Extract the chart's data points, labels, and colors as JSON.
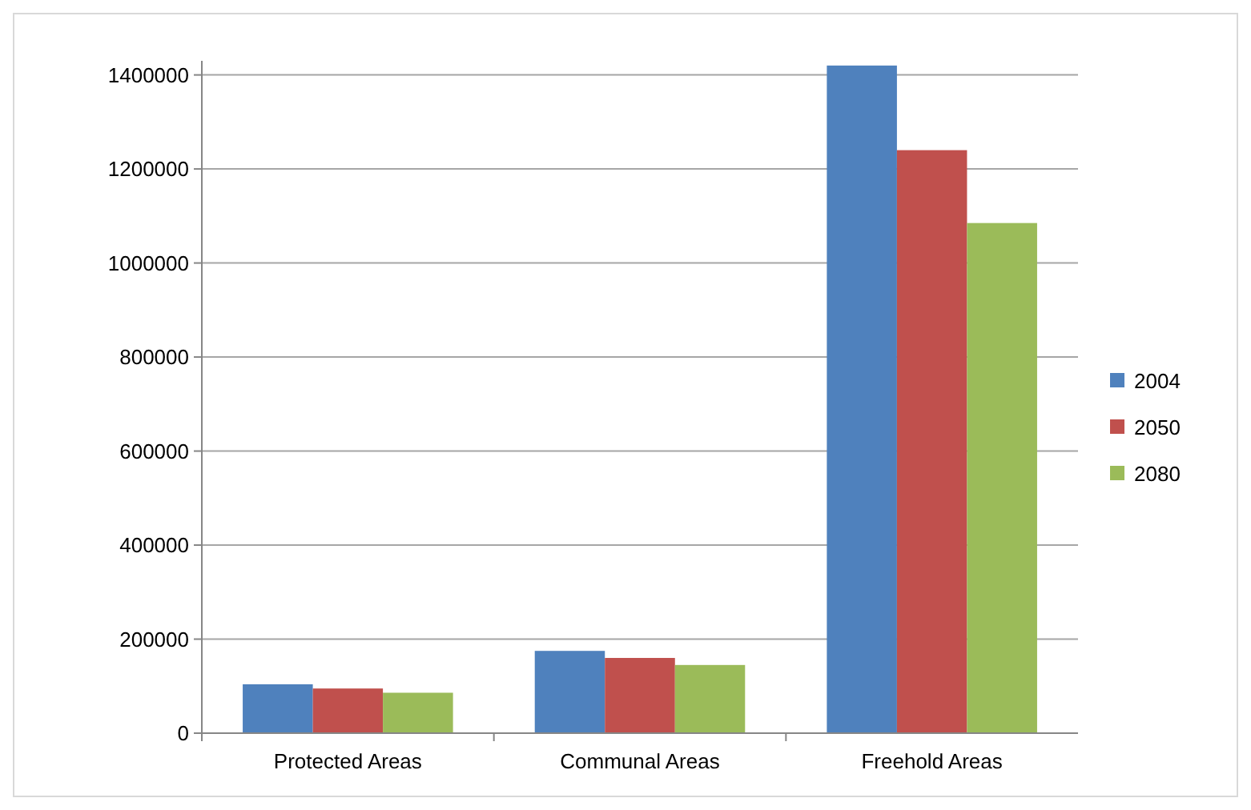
{
  "chart_data": {
    "type": "bar",
    "categories": [
      "Protected Areas",
      "Communal Areas",
      "Freehold Areas"
    ],
    "series": [
      {
        "name": "2004",
        "color": "#4f81bd",
        "values": [
          104000,
          175000,
          1420000
        ]
      },
      {
        "name": "2050",
        "color": "#c0504d",
        "values": [
          95000,
          160000,
          1240000
        ]
      },
      {
        "name": "2080",
        "color": "#9bbb59",
        "values": [
          86000,
          145000,
          1085000
        ]
      }
    ],
    "ylim": [
      0,
      1430000
    ],
    "yticks": [
      0,
      200000,
      400000,
      600000,
      800000,
      1000000,
      1200000,
      1400000
    ],
    "grid": "y",
    "legend": "right"
  }
}
